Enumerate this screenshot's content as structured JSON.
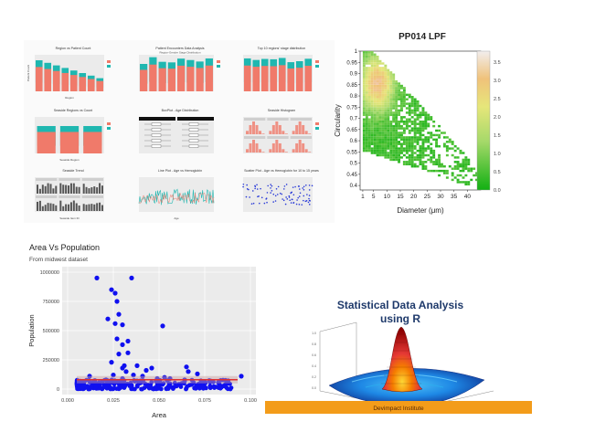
{
  "colors": {
    "salmon": "#f07a6a",
    "teal": "#1fb7b0",
    "scatter_point": "#1010f0",
    "trend_line": "#e03030",
    "banner": "#f39c1a",
    "panel_bg": "#ebebeb",
    "heat_low": "#1eb21e",
    "heat_high": "#e85c4f"
  },
  "dashboard": {
    "charts": [
      {
        "title": "Region vs Patient Count",
        "xlabel": "Region",
        "ylabel": "Patient Count"
      },
      {
        "title": "Patient Encounters Data Analysis",
        "subtitle": "Region-Gender Stage Distribution"
      },
      {
        "title": "Top 10 regions' stage distribution"
      },
      {
        "title": "Seaside Regions vs Count",
        "xlabel": "Seaside Region"
      },
      {
        "title": "BoxPlot - Age Distribution"
      },
      {
        "title": "Seaside Histogram"
      },
      {
        "title": "Seaside Trend",
        "xlabel": "Seaside Item ID"
      },
      {
        "title": "Line Plot - Age vs Hemoglobin",
        "xlabel": "Age"
      },
      {
        "title": "Scatter Plot - Age vs Hemoglobin for 10 to 15 years"
      }
    ]
  },
  "chart_data": [
    {
      "type": "heatmap",
      "title": "PP014 LPF",
      "xlabel": "Diameter (μm)",
      "ylabel": "Circularity",
      "xticks": [
        "1",
        "5",
        "10",
        "15",
        "20",
        "25",
        "30",
        "35",
        "40"
      ],
      "yticks": [
        "0.4",
        "0.45",
        "0.5",
        "0.55",
        "0.6",
        "0.65",
        "0.7",
        "0.75",
        "0.8",
        "0.85",
        "0.9",
        "0.95",
        "1"
      ],
      "colorbar_ticks": [
        "0.0",
        "0.5",
        "1.0",
        "1.5",
        "2.0",
        "2.5",
        "3.0",
        "3.5"
      ],
      "xlim": [
        0,
        45
      ],
      "ylim": [
        0.38,
        1.0
      ],
      "clim": [
        0,
        3.8
      ]
    },
    {
      "type": "scatter",
      "title": "Area Vs Population",
      "subtitle": "From midwest dataset",
      "xlabel": "Area",
      "ylabel": "Population",
      "xlim": [
        0.0,
        0.1
      ],
      "ylim": [
        0,
        1000000
      ],
      "xticks": [
        "0.000",
        "0.025",
        "0.050",
        "0.075",
        "0.100"
      ],
      "yticks": [
        "0",
        "250000",
        "500000",
        "750000",
        "1000000"
      ],
      "points": [
        [
          0.016,
          950000
        ],
        [
          0.035,
          950000
        ],
        [
          0.024,
          850000
        ],
        [
          0.026,
          820000
        ],
        [
          0.027,
          750000
        ],
        [
          0.028,
          640000
        ],
        [
          0.022,
          600000
        ],
        [
          0.026,
          560000
        ],
        [
          0.03,
          550000
        ],
        [
          0.052,
          540000
        ],
        [
          0.027,
          430000
        ],
        [
          0.033,
          410000
        ],
        [
          0.03,
          380000
        ],
        [
          0.028,
          300000
        ],
        [
          0.033,
          310000
        ],
        [
          0.024,
          230000
        ],
        [
          0.031,
          200000
        ],
        [
          0.03,
          180000
        ],
        [
          0.032,
          150000
        ],
        [
          0.038,
          200000
        ],
        [
          0.043,
          160000
        ],
        [
          0.065,
          190000
        ],
        [
          0.066,
          150000
        ],
        [
          0.071,
          130000
        ],
        [
          0.046,
          180000
        ],
        [
          0.012,
          110000
        ],
        [
          0.036,
          120000
        ],
        [
          0.041,
          110000
        ],
        [
          0.049,
          90000
        ],
        [
          0.056,
          90000
        ],
        [
          0.064,
          80000
        ],
        [
          0.075,
          60000
        ],
        [
          0.083,
          40000
        ],
        [
          0.095,
          110000
        ],
        [
          0.03,
          90000
        ],
        [
          0.021,
          80000
        ],
        [
          0.025,
          120000
        ],
        [
          0.053,
          100000
        ],
        [
          0.04,
          70000
        ],
        [
          0.08,
          20000
        ]
      ],
      "dense_band": {
        "x_range": [
          0.005,
          0.09
        ],
        "y_range": [
          0,
          80000
        ]
      },
      "trend": {
        "x": [
          0.005,
          0.093
        ],
        "y": [
          80000,
          80000
        ]
      }
    },
    {
      "type": "surface",
      "title": "Statistical Data Analysis using R",
      "zticks": [
        "0.0",
        "0.2",
        "0.4",
        "0.6",
        "0.8",
        "1.0"
      ]
    }
  ],
  "banner": {
    "text": "Devimpact Institute"
  }
}
